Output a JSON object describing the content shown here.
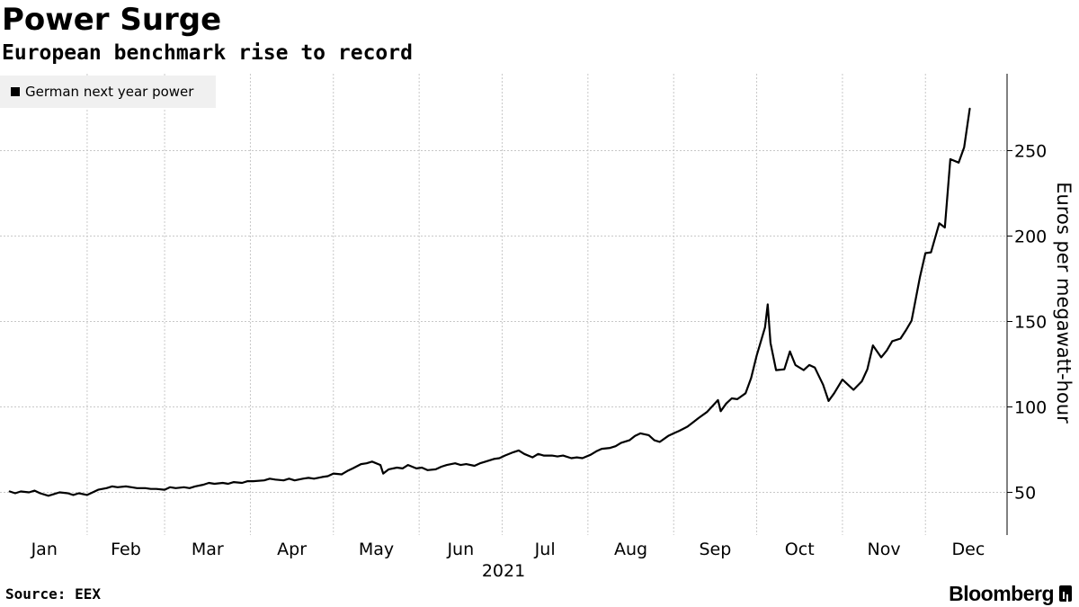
{
  "title": "Power Surge",
  "subtitle": "European benchmark rise to record",
  "source": "Source: EEX",
  "brand": "Bloomberg",
  "chart_data": {
    "type": "line",
    "ylabel": "Euros per megawatt-hour",
    "xlabel": "2021",
    "ylim": [
      25,
      295
    ],
    "yticks": [
      50,
      100,
      150,
      200,
      250
    ],
    "month_labels": [
      "Jan",
      "Feb",
      "Mar",
      "Apr",
      "May",
      "Jun",
      "Jul",
      "Aug",
      "Sep",
      "Oct",
      "Nov",
      "Dec"
    ],
    "grid": true,
    "legend_position": "top-left",
    "line_color": "#000000",
    "series": [
      {
        "name": "German next year power",
        "points": [
          [
            "2021-01-04",
            50.5
          ],
          [
            "2021-01-06",
            49.5
          ],
          [
            "2021-01-08",
            50.5
          ],
          [
            "2021-01-11",
            50.0
          ],
          [
            "2021-01-13",
            51.0
          ],
          [
            "2021-01-15",
            49.5
          ],
          [
            "2021-01-18",
            48.0
          ],
          [
            "2021-01-20",
            49.0
          ],
          [
            "2021-01-22",
            50.0
          ],
          [
            "2021-01-25",
            49.5
          ],
          [
            "2021-01-27",
            48.5
          ],
          [
            "2021-01-29",
            49.5
          ],
          [
            "2021-02-01",
            48.5
          ],
          [
            "2021-02-03",
            50.0
          ],
          [
            "2021-02-05",
            51.5
          ],
          [
            "2021-02-08",
            52.5
          ],
          [
            "2021-02-10",
            53.5
          ],
          [
            "2021-02-12",
            53.0
          ],
          [
            "2021-02-15",
            53.5
          ],
          [
            "2021-02-17",
            53.0
          ],
          [
            "2021-02-19",
            52.5
          ],
          [
            "2021-02-22",
            52.5
          ],
          [
            "2021-02-24",
            52.0
          ],
          [
            "2021-02-26",
            52.0
          ],
          [
            "2021-03-01",
            51.5
          ],
          [
            "2021-03-03",
            53.0
          ],
          [
            "2021-03-05",
            52.5
          ],
          [
            "2021-03-08",
            53.0
          ],
          [
            "2021-03-10",
            52.5
          ],
          [
            "2021-03-12",
            53.5
          ],
          [
            "2021-03-15",
            54.5
          ],
          [
            "2021-03-17",
            55.5
          ],
          [
            "2021-03-19",
            55.0
          ],
          [
            "2021-03-22",
            55.5
          ],
          [
            "2021-03-24",
            55.0
          ],
          [
            "2021-03-26",
            56.0
          ],
          [
            "2021-03-29",
            55.5
          ],
          [
            "2021-03-31",
            56.5
          ],
          [
            "2021-04-02",
            56.5
          ],
          [
            "2021-04-06",
            57.0
          ],
          [
            "2021-04-08",
            58.0
          ],
          [
            "2021-04-10",
            57.5
          ],
          [
            "2021-04-13",
            57.0
          ],
          [
            "2021-04-15",
            58.0
          ],
          [
            "2021-04-17",
            57.0
          ],
          [
            "2021-04-20",
            58.0
          ],
          [
            "2021-04-22",
            58.5
          ],
          [
            "2021-04-24",
            58.0
          ],
          [
            "2021-04-27",
            59.0
          ],
          [
            "2021-04-29",
            59.5
          ],
          [
            "2021-05-01",
            61.0
          ],
          [
            "2021-05-04",
            60.5
          ],
          [
            "2021-05-06",
            62.5
          ],
          [
            "2021-05-08",
            64.0
          ],
          [
            "2021-05-11",
            66.5
          ],
          [
            "2021-05-13",
            67.0
          ],
          [
            "2021-05-15",
            68.0
          ],
          [
            "2021-05-18",
            66.0
          ],
          [
            "2021-05-19",
            61.0
          ],
          [
            "2021-05-21",
            63.5
          ],
          [
            "2021-05-24",
            64.5
          ],
          [
            "2021-05-26",
            64.0
          ],
          [
            "2021-05-28",
            66.0
          ],
          [
            "2021-05-31",
            64.0
          ],
          [
            "2021-06-02",
            64.5
          ],
          [
            "2021-06-04",
            63.0
          ],
          [
            "2021-06-07",
            63.5
          ],
          [
            "2021-06-09",
            65.0
          ],
          [
            "2021-06-11",
            66.0
          ],
          [
            "2021-06-14",
            67.0
          ],
          [
            "2021-06-16",
            66.0
          ],
          [
            "2021-06-18",
            66.5
          ],
          [
            "2021-06-21",
            65.5
          ],
          [
            "2021-06-23",
            67.0
          ],
          [
            "2021-06-25",
            68.0
          ],
          [
            "2021-06-28",
            69.5
          ],
          [
            "2021-06-30",
            70.0
          ],
          [
            "2021-07-02",
            71.5
          ],
          [
            "2021-07-05",
            73.5
          ],
          [
            "2021-07-07",
            74.5
          ],
          [
            "2021-07-09",
            72.5
          ],
          [
            "2021-07-12",
            70.5
          ],
          [
            "2021-07-14",
            72.5
          ],
          [
            "2021-07-16",
            71.5
          ],
          [
            "2021-07-19",
            71.5
          ],
          [
            "2021-07-21",
            71.0
          ],
          [
            "2021-07-23",
            71.5
          ],
          [
            "2021-07-26",
            70.0
          ],
          [
            "2021-07-28",
            70.5
          ],
          [
            "2021-07-30",
            70.0
          ],
          [
            "2021-08-02",
            72.0
          ],
          [
            "2021-08-04",
            74.0
          ],
          [
            "2021-08-06",
            75.5
          ],
          [
            "2021-08-09",
            76.0
          ],
          [
            "2021-08-11",
            77.0
          ],
          [
            "2021-08-13",
            79.0
          ],
          [
            "2021-08-16",
            80.5
          ],
          [
            "2021-08-18",
            83.0
          ],
          [
            "2021-08-20",
            84.5
          ],
          [
            "2021-08-23",
            83.5
          ],
          [
            "2021-08-25",
            80.5
          ],
          [
            "2021-08-27",
            79.5
          ],
          [
            "2021-08-30",
            83.0
          ],
          [
            "2021-09-01",
            84.5
          ],
          [
            "2021-09-03",
            86.0
          ],
          [
            "2021-09-06",
            88.5
          ],
          [
            "2021-09-08",
            91.0
          ],
          [
            "2021-09-10",
            93.5
          ],
          [
            "2021-09-13",
            97.0
          ],
          [
            "2021-09-15",
            100.5
          ],
          [
            "2021-09-17",
            104.0
          ],
          [
            "2021-09-18",
            97.5
          ],
          [
            "2021-09-20",
            102.0
          ],
          [
            "2021-09-22",
            105.0
          ],
          [
            "2021-09-24",
            104.5
          ],
          [
            "2021-09-27",
            108.0
          ],
          [
            "2021-09-29",
            117.0
          ],
          [
            "2021-10-01",
            130.0
          ],
          [
            "2021-10-04",
            146.5
          ],
          [
            "2021-10-05",
            160.0
          ],
          [
            "2021-10-06",
            137.5
          ],
          [
            "2021-10-08",
            121.5
          ],
          [
            "2021-10-11",
            122.0
          ],
          [
            "2021-10-13",
            132.5
          ],
          [
            "2021-10-15",
            124.5
          ],
          [
            "2021-10-18",
            121.5
          ],
          [
            "2021-10-20",
            124.5
          ],
          [
            "2021-10-22",
            123.0
          ],
          [
            "2021-10-25",
            113.0
          ],
          [
            "2021-10-27",
            103.5
          ],
          [
            "2021-10-29",
            108.0
          ],
          [
            "2021-11-01",
            116.0
          ],
          [
            "2021-11-03",
            113.0
          ],
          [
            "2021-11-05",
            110.0
          ],
          [
            "2021-11-08",
            115.0
          ],
          [
            "2021-11-10",
            122.0
          ],
          [
            "2021-11-12",
            136.0
          ],
          [
            "2021-11-15",
            129.0
          ],
          [
            "2021-11-17",
            133.0
          ],
          [
            "2021-11-19",
            138.5
          ],
          [
            "2021-11-22",
            140.0
          ],
          [
            "2021-11-24",
            145.0
          ],
          [
            "2021-11-26",
            150.5
          ],
          [
            "2021-11-29",
            176.0
          ],
          [
            "2021-12-01",
            190.0
          ],
          [
            "2021-12-03",
            190.5
          ],
          [
            "2021-12-06",
            207.5
          ],
          [
            "2021-12-08",
            205.0
          ],
          [
            "2021-12-10",
            245.0
          ],
          [
            "2021-12-13",
            243.0
          ],
          [
            "2021-12-15",
            252.0
          ],
          [
            "2021-12-17",
            274.5
          ]
        ]
      }
    ]
  }
}
